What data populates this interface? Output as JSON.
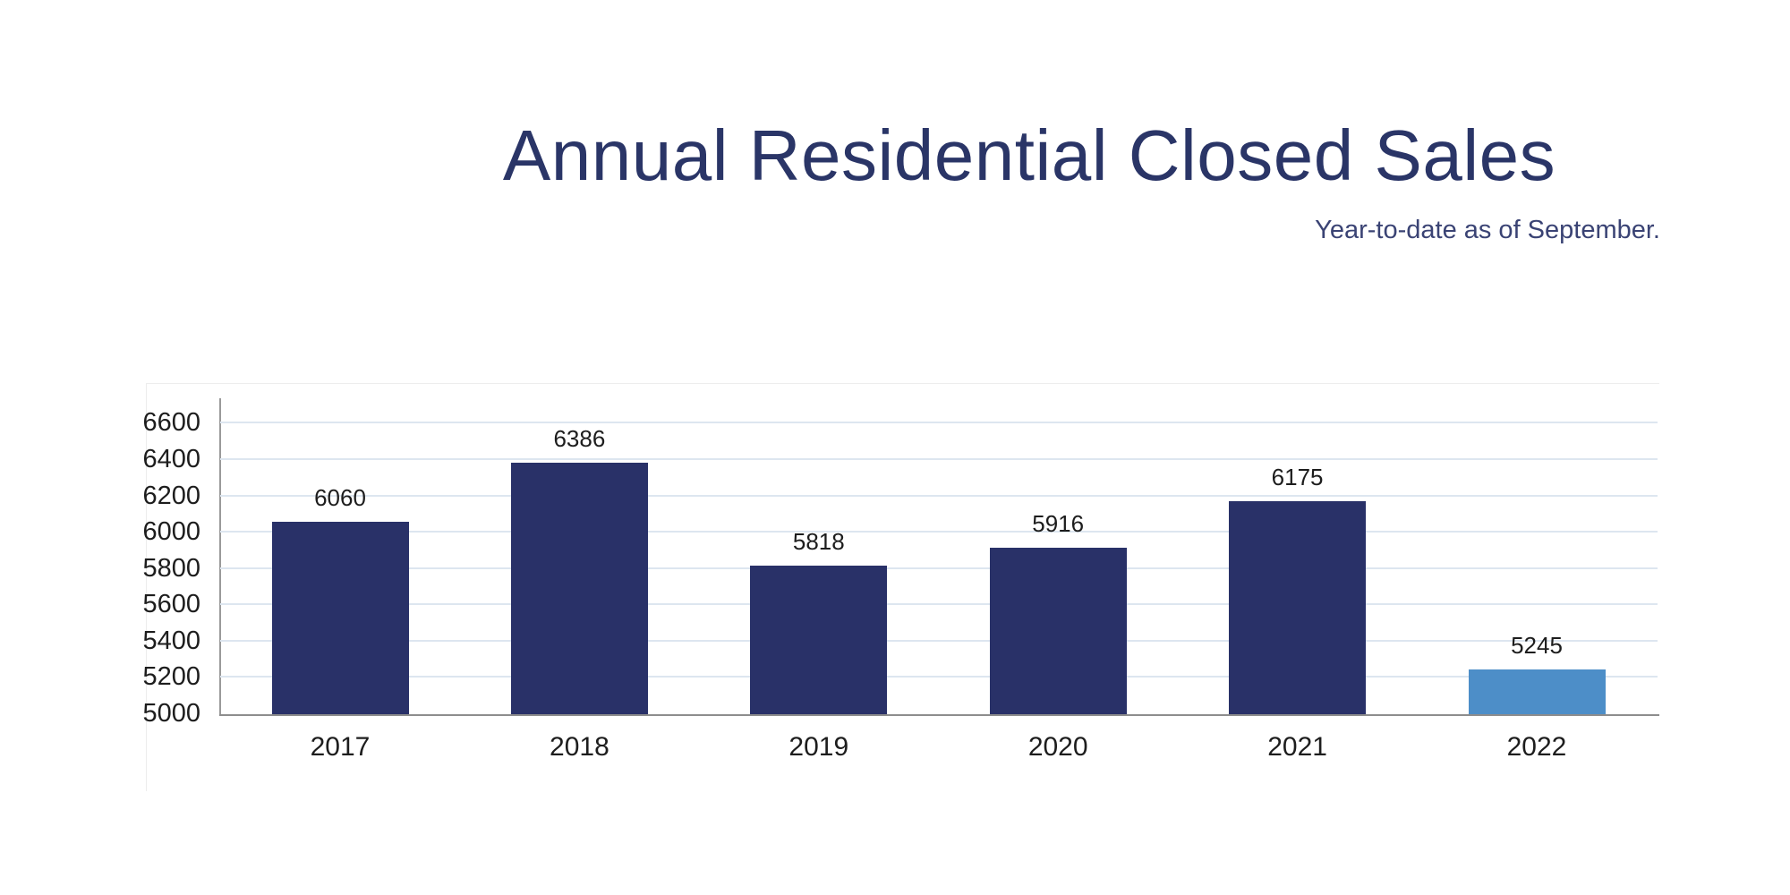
{
  "header": {
    "title": "Annual Residential Closed Sales",
    "subtitle": "Year-to-date as of September."
  },
  "colors": {
    "title_text": "#2a3567",
    "subtitle_text": "#3a4374",
    "bar_default": "#293168",
    "bar_highlight": "#4d8ec8",
    "gridline": "#dde6f0",
    "axis_line": "#8d8d8d",
    "label_text": "#1d1d1d",
    "background": "#ffffff"
  },
  "chart_data": {
    "type": "bar",
    "title": "Annual Residential Closed Sales",
    "subtitle": "Year-to-date as of September.",
    "categories": [
      "2017",
      "2018",
      "2019",
      "2020",
      "2021",
      "2022"
    ],
    "values": [
      6060,
      6386,
      5818,
      5916,
      6175,
      5245
    ],
    "bar_colors": [
      "#293168",
      "#293168",
      "#293168",
      "#293168",
      "#293168",
      "#4d8ec8"
    ],
    "data_labels": [
      6060,
      6386,
      5818,
      5916,
      6175,
      5245
    ],
    "xlabel": "",
    "ylabel": "",
    "y_ticks": [
      5000,
      5200,
      5400,
      5600,
      5800,
      6000,
      6200,
      6400,
      6600
    ],
    "ylim": [
      5000,
      6740
    ],
    "grid": "horizontal",
    "legend": "none"
  }
}
